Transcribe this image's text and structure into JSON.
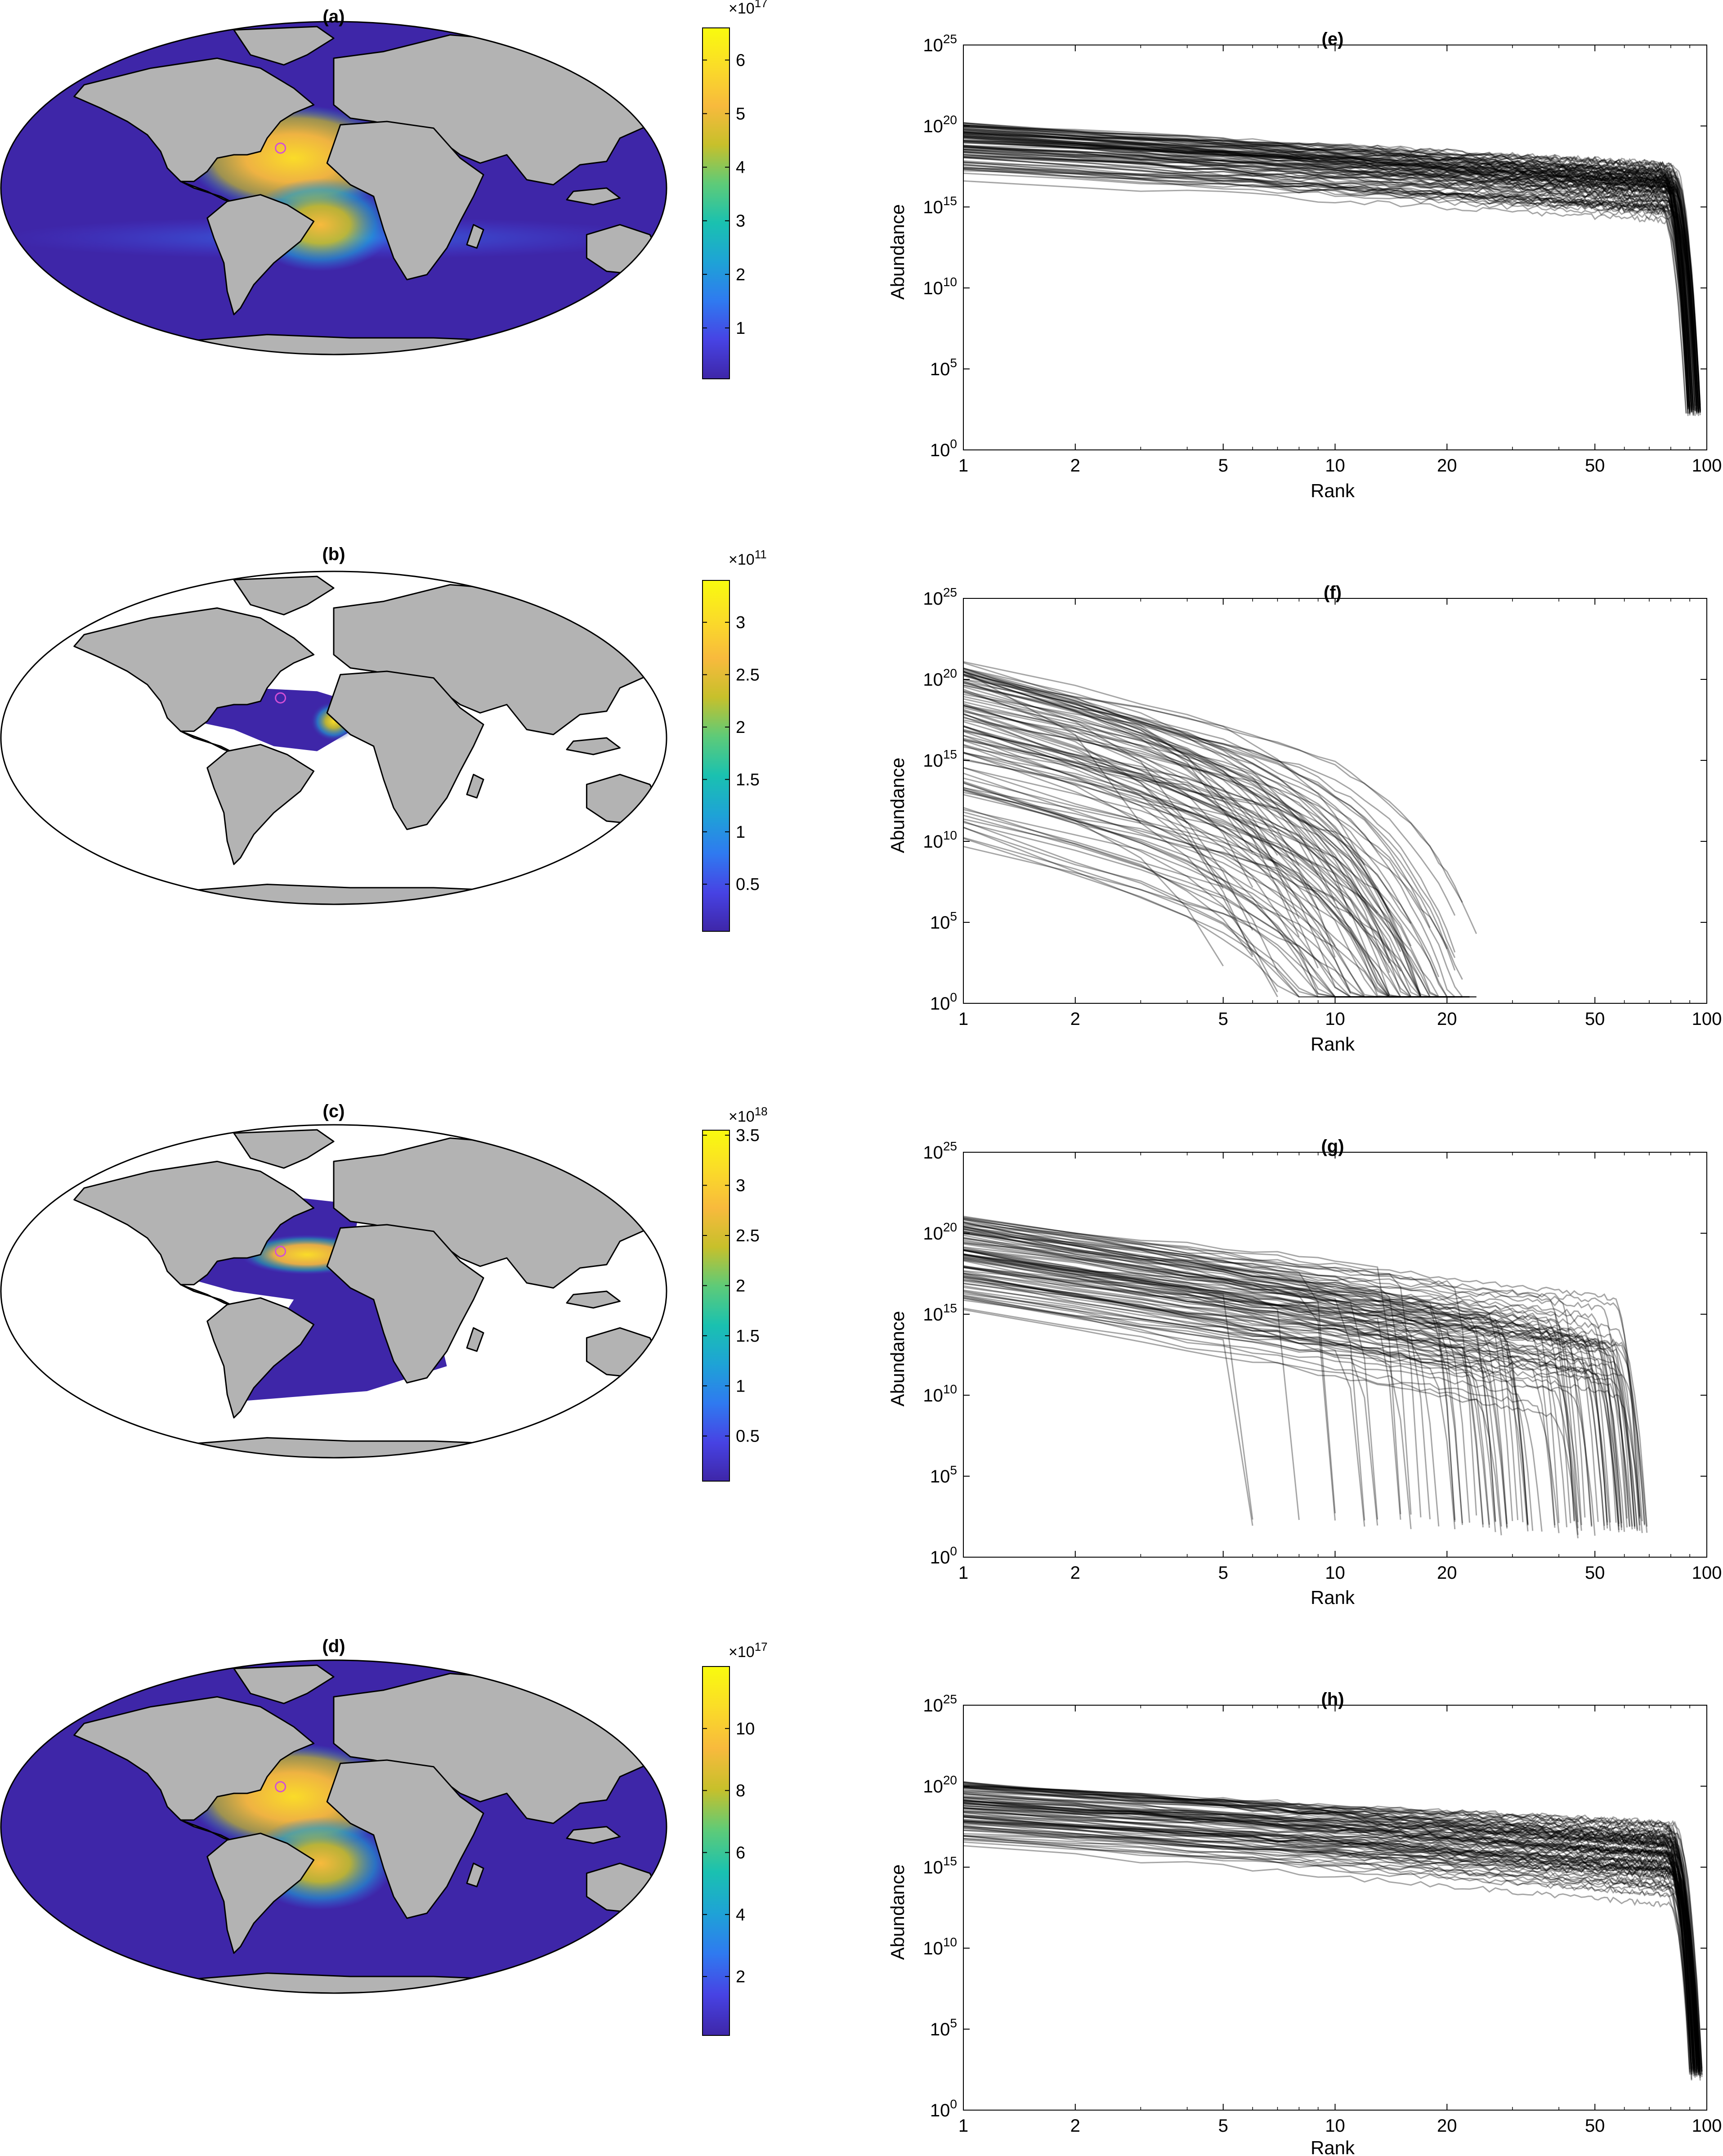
{
  "panel_labels": [
    "(a)",
    "(b)",
    "(c)",
    "(d)",
    "(e)",
    "(f)",
    "(g)",
    "(h)"
  ],
  "colormap": [
    "#3e26a8",
    "#4743e4",
    "#2f7af0",
    "#1ea3d6",
    "#1ac1b0",
    "#5ecb78",
    "#c7c02b",
    "#f8ba3d",
    "#fadc28",
    "#f9fb0e"
  ],
  "map_colors": {
    "land": "#b3b3b3",
    "empty_ocean": "#ffffff",
    "coastline": "#000000",
    "marker": "#d24fd6"
  },
  "chart_data": [
    {
      "panel": "(a)",
      "type": "heatmap",
      "title": "(a)",
      "projection": "Mollweide world map",
      "colorbar": {
        "exponent_prefix": "×10",
        "exponent": "17",
        "ticks": [
          "1",
          "2",
          "3",
          "4",
          "5",
          "6"
        ],
        "tick_values": [
          1,
          2,
          3,
          4,
          5,
          6
        ],
        "range": [
          0.05,
          6.6
        ]
      },
      "fill": "global ocean, maximum in North Atlantic / Caribbean"
    },
    {
      "panel": "(b)",
      "type": "heatmap",
      "title": "(b)",
      "projection": "Mollweide world map",
      "colorbar": {
        "exponent_prefix": "×10",
        "exponent": "11",
        "ticks": [
          "0.5",
          "1",
          "1.5",
          "2",
          "2.5",
          "3"
        ],
        "tick_values": [
          0.5,
          1,
          1.5,
          2,
          2.5,
          3
        ],
        "range": [
          0.05,
          3.4
        ]
      },
      "fill": "tropical North Atlantic only"
    },
    {
      "panel": "(c)",
      "type": "heatmap",
      "title": "(c)",
      "projection": "Mollweide world map",
      "colorbar": {
        "exponent_prefix": "×10",
        "exponent": "18",
        "ticks": [
          "0.5",
          "1",
          "1.5",
          "2",
          "2.5",
          "3",
          "3.5"
        ],
        "tick_values": [
          0.5,
          1,
          1.5,
          2,
          2.5,
          3,
          3.5
        ],
        "range": [
          0.05,
          3.55
        ]
      },
      "fill": "Atlantic basin only"
    },
    {
      "panel": "(d)",
      "type": "heatmap",
      "title": "(d)",
      "projection": "Mollweide world map",
      "colorbar": {
        "exponent_prefix": "×10",
        "exponent": "17",
        "ticks": [
          "2",
          "4",
          "6",
          "8",
          "10"
        ],
        "tick_values": [
          2,
          4,
          6,
          8,
          10
        ],
        "range": [
          0.1,
          12
        ]
      },
      "fill": "global ocean, maximum in North Atlantic / Caribbean"
    },
    {
      "panel": "(e)",
      "type": "line",
      "title": "(e)",
      "xlabel": "Rank",
      "ylabel": "Abundance",
      "xscale": "log",
      "yscale": "log",
      "xlim": [
        1,
        100
      ],
      "ylim": [
        1,
        1e+25
      ],
      "xticks": [
        "1",
        "2",
        "5",
        "10",
        "20",
        "50",
        "100"
      ],
      "xtick_values": [
        1,
        2,
        5,
        10,
        20,
        50,
        100
      ],
      "ytick_base": "10",
      "ytick_exponents": [
        "0",
        "5",
        "10",
        "15",
        "20",
        "25"
      ],
      "series_color": "#000000",
      "series_count": 100,
      "profile": {
        "start_log10": [
          16.6,
          20.2
        ],
        "decay_per_log10_rank": [
          1.2,
          1.7
        ],
        "richness": [
          88,
          96
        ],
        "tail_drop": "steep"
      }
    },
    {
      "panel": "(f)",
      "type": "line",
      "title": "(f)",
      "xlabel": "Rank",
      "ylabel": "Abundance",
      "xscale": "log",
      "yscale": "log",
      "xlim": [
        1,
        100
      ],
      "ylim": [
        1,
        1e+25
      ],
      "xticks": [
        "1",
        "2",
        "5",
        "10",
        "20",
        "50",
        "100"
      ],
      "xtick_values": [
        1,
        2,
        5,
        10,
        20,
        50,
        100
      ],
      "ytick_base": "10",
      "ytick_exponents": [
        "0",
        "5",
        "10",
        "15",
        "20",
        "25"
      ],
      "series_color": "#000000",
      "series_count": 100,
      "profile": {
        "start_log10": [
          9.0,
          21.0
        ],
        "decay_per_log10_rank": [
          4,
          8
        ],
        "richness": [
          3,
          24
        ],
        "tail_drop": "gradual"
      }
    },
    {
      "panel": "(g)",
      "type": "line",
      "title": "(g)",
      "xlabel": "Rank",
      "ylabel": "Abundance",
      "xscale": "log",
      "yscale": "log",
      "xlim": [
        1,
        100
      ],
      "ylim": [
        1,
        1e+25
      ],
      "xticks": [
        "1",
        "2",
        "5",
        "10",
        "20",
        "50",
        "100"
      ],
      "xtick_values": [
        1,
        2,
        5,
        10,
        20,
        50,
        100
      ],
      "ytick_base": "10",
      "ytick_exponents": [
        "0",
        "5",
        "10",
        "15",
        "20",
        "25"
      ],
      "series_color": "#000000",
      "series_count": 100,
      "profile": {
        "start_log10": [
          15.0,
          21.0
        ],
        "decay_per_log10_rank": [
          2.5,
          4.5
        ],
        "richness": [
          4,
          70
        ],
        "tail_drop": "steep"
      }
    },
    {
      "panel": "(h)",
      "type": "line",
      "title": "(h)",
      "xlabel": "Rank",
      "ylabel": "Abundance",
      "xscale": "log",
      "yscale": "log",
      "xlim": [
        1,
        100
      ],
      "ylim": [
        1,
        1e+25
      ],
      "xticks": [
        "1",
        "2",
        "5",
        "10",
        "20",
        "50",
        "100"
      ],
      "xtick_values": [
        1,
        2,
        5,
        10,
        20,
        50,
        100
      ],
      "ytick_base": "10",
      "ytick_exponents": [
        "0",
        "5",
        "10",
        "15",
        "20",
        "25"
      ],
      "series_color": "#000000",
      "series_count": 100,
      "profile": {
        "start_log10": [
          16.2,
          20.2
        ],
        "decay_per_log10_rank": [
          1.1,
          2.0
        ],
        "richness": [
          90,
          97
        ],
        "tail_drop": "steep"
      }
    }
  ]
}
